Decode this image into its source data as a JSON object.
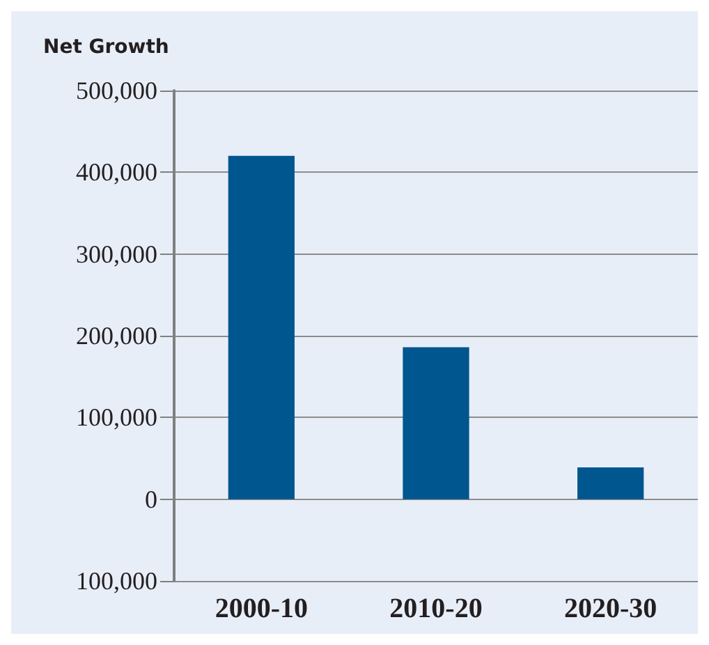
{
  "chart_data": {
    "type": "bar",
    "title": "Net Growth",
    "categories": [
      "2000-10",
      "2010-20",
      "2020-30"
    ],
    "values": [
      420000,
      186000,
      39000
    ],
    "color": "#00568f",
    "ylim": [
      -100000,
      500000
    ],
    "yticks": [
      {
        "value": -100000,
        "label": "100,000"
      },
      {
        "value": 0,
        "label": "0"
      },
      {
        "value": 100000,
        "label": "100,000"
      },
      {
        "value": 200000,
        "label": "200,000"
      },
      {
        "value": 300000,
        "label": "300,000"
      },
      {
        "value": 400000,
        "label": "400,000"
      },
      {
        "value": 500000,
        "label": "500,000"
      }
    ],
    "grid": "y"
  }
}
